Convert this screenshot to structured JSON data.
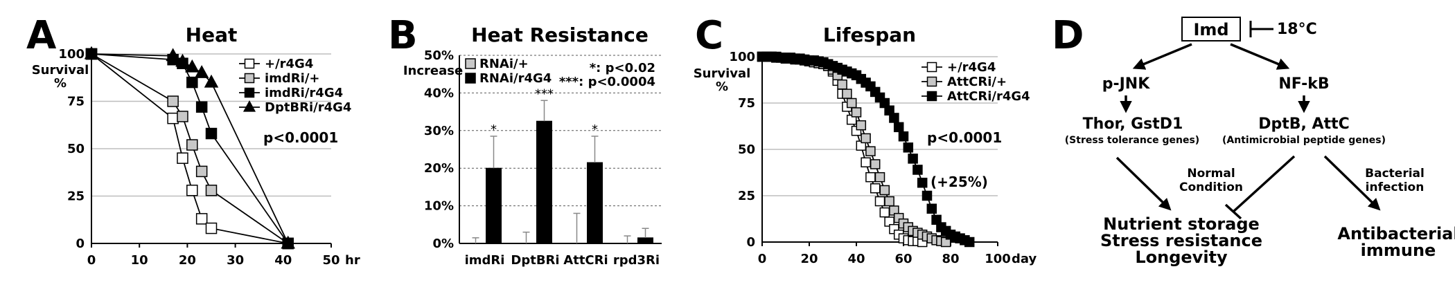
{
  "panels": {
    "A": {
      "letter": "A",
      "title": "Heat"
    },
    "B": {
      "letter": "B",
      "title": "Heat Resistance"
    },
    "C": {
      "letter": "C",
      "title": "Lifespan"
    },
    "D": {
      "letter": "D"
    }
  },
  "chart_data": [
    {
      "id": "A",
      "type": "line",
      "title": "Heat",
      "ylabel": "Survival %",
      "xlabel": "hr",
      "xlim": [
        0,
        50
      ],
      "ylim": [
        0,
        100
      ],
      "xticks": [
        0,
        10,
        20,
        30,
        40,
        50
      ],
      "yticks": [
        0,
        25,
        50,
        75,
        100
      ],
      "grid": "horizontal",
      "legend_position": "top-right",
      "annotation": "p<0.0001",
      "series": [
        {
          "name": "+/r4G4",
          "marker": "square",
          "fill": "#ffffff",
          "points": [
            [
              0,
              100
            ],
            [
              17,
              66
            ],
            [
              19,
              45
            ],
            [
              21,
              28
            ],
            [
              23,
              13
            ],
            [
              25,
              8
            ],
            [
              41,
              0
            ]
          ]
        },
        {
          "name": "imdRi/+",
          "marker": "square",
          "fill": "#c8c8c8",
          "points": [
            [
              0,
              100
            ],
            [
              17,
              75
            ],
            [
              19,
              67
            ],
            [
              21,
              52
            ],
            [
              23,
              38
            ],
            [
              25,
              28
            ],
            [
              41,
              0
            ]
          ]
        },
        {
          "name": "imdRi/r4G4",
          "marker": "square",
          "fill": "#000000",
          "points": [
            [
              0,
              100
            ],
            [
              17,
              97
            ],
            [
              19,
              95
            ],
            [
              21,
              85
            ],
            [
              23,
              72
            ],
            [
              25,
              58
            ],
            [
              41,
              0
            ]
          ]
        },
        {
          "name": "DptBRi/r4G4",
          "marker": "triangle",
          "fill": "#000000",
          "points": [
            [
              0,
              100
            ],
            [
              17,
              99
            ],
            [
              19,
              96
            ],
            [
              21,
              93
            ],
            [
              23,
              90
            ],
            [
              25,
              85
            ],
            [
              41,
              0
            ]
          ]
        }
      ]
    },
    {
      "id": "B",
      "type": "bar",
      "title": "Heat Resistance",
      "ylabel": "Increase",
      "categories": [
        "imdRi",
        "DptBRi",
        "AttCRi",
        "rpd3Ri"
      ],
      "ylim": [
        0,
        50
      ],
      "yticks": [
        "0%",
        "10%",
        "20%",
        "30%",
        "40%",
        "50%"
      ],
      "ytick_values": [
        0,
        10,
        20,
        30,
        40,
        50
      ],
      "grid": "horizontal dotted",
      "legend_position": "top-left",
      "sig_legend": [
        "*: p<0.02",
        "***: p<0.0004"
      ],
      "series": [
        {
          "name": "RNAi/+",
          "fill": "#c8c8c8",
          "values": [
            0,
            0,
            0,
            0
          ],
          "errors": [
            1.5,
            3,
            8,
            2
          ]
        },
        {
          "name": "RNAi/r4G4",
          "fill": "#000000",
          "values": [
            20,
            32.5,
            21.5,
            1.5
          ],
          "errors": [
            8.5,
            5.5,
            7,
            2.5
          ]
        }
      ],
      "significance": [
        "*",
        "***",
        "*",
        ""
      ]
    },
    {
      "id": "C",
      "type": "line",
      "title": "Lifespan",
      "ylabel": "Survival %",
      "xlabel": "day",
      "xlim": [
        0,
        100
      ],
      "ylim": [
        0,
        100
      ],
      "xticks": [
        0,
        20,
        40,
        60,
        80,
        100
      ],
      "yticks": [
        0,
        25,
        50,
        75,
        100
      ],
      "grid": "horizontal",
      "legend_position": "top-right",
      "annotations": [
        "p<0.0001",
        "(+25%)"
      ],
      "series": [
        {
          "name": "+/r4G4",
          "marker": "square",
          "fill": "#ffffff",
          "points": [
            [
              0,
              100
            ],
            [
              2,
              100
            ],
            [
              4,
              100
            ],
            [
              6,
              99.5
            ],
            [
              8,
              99.5
            ],
            [
              10,
              99
            ],
            [
              12,
              99
            ],
            [
              14,
              99
            ],
            [
              16,
              98.5
            ],
            [
              18,
              98
            ],
            [
              20,
              97.5
            ],
            [
              22,
              97
            ],
            [
              24,
              96.5
            ],
            [
              26,
              96
            ],
            [
              28,
              95
            ],
            [
              30,
              92
            ],
            [
              32,
              87
            ],
            [
              34,
              80
            ],
            [
              36,
              73
            ],
            [
              38,
              66
            ],
            [
              40,
              60
            ],
            [
              42,
              52
            ],
            [
              44,
              43
            ],
            [
              46,
              35
            ],
            [
              48,
              29
            ],
            [
              50,
              22
            ],
            [
              52,
              16
            ],
            [
              54,
              11
            ],
            [
              56,
              7
            ],
            [
              58,
              4
            ],
            [
              60,
              2
            ],
            [
              62,
              1
            ],
            [
              64,
              0.5
            ],
            [
              66,
              0.5
            ],
            [
              68,
              0
            ]
          ]
        },
        {
          "name": "AttCRi/+",
          "marker": "square",
          "fill": "#c8c8c8",
          "points": [
            [
              0,
              100
            ],
            [
              2,
              100
            ],
            [
              4,
              100
            ],
            [
              6,
              99.5
            ],
            [
              8,
              99.5
            ],
            [
              10,
              99
            ],
            [
              12,
              99
            ],
            [
              14,
              98.5
            ],
            [
              16,
              98.5
            ],
            [
              18,
              98
            ],
            [
              20,
              97.5
            ],
            [
              22,
              97
            ],
            [
              24,
              96.5
            ],
            [
              26,
              96
            ],
            [
              28,
              95
            ],
            [
              30,
              93
            ],
            [
              32,
              90
            ],
            [
              34,
              85
            ],
            [
              36,
              80
            ],
            [
              38,
              75
            ],
            [
              40,
              70
            ],
            [
              42,
              63
            ],
            [
              44,
              56
            ],
            [
              46,
              49
            ],
            [
              48,
              42
            ],
            [
              50,
              35
            ],
            [
              52,
              28
            ],
            [
              54,
              22
            ],
            [
              56,
              17
            ],
            [
              58,
              13
            ],
            [
              60,
              10
            ],
            [
              62,
              8
            ],
            [
              64,
              6
            ],
            [
              66,
              5
            ],
            [
              68,
              4
            ],
            [
              70,
              3
            ],
            [
              72,
              2
            ],
            [
              74,
              1
            ],
            [
              76,
              0.5
            ],
            [
              78,
              0
            ]
          ]
        },
        {
          "name": "AttCRi/r4G4",
          "marker": "square",
          "fill": "#000000",
          "points": [
            [
              0,
              100
            ],
            [
              2,
              100
            ],
            [
              4,
              100
            ],
            [
              6,
              100
            ],
            [
              8,
              99.5
            ],
            [
              10,
              99.5
            ],
            [
              12,
              99.5
            ],
            [
              14,
              99
            ],
            [
              16,
              99
            ],
            [
              18,
              98.5
            ],
            [
              20,
              98
            ],
            [
              22,
              98
            ],
            [
              24,
              97.5
            ],
            [
              26,
              97
            ],
            [
              28,
              96
            ],
            [
              30,
              95
            ],
            [
              32,
              94
            ],
            [
              34,
              93
            ],
            [
              36,
              92
            ],
            [
              38,
              91
            ],
            [
              40,
              90
            ],
            [
              42,
              88
            ],
            [
              44,
              86
            ],
            [
              46,
              84
            ],
            [
              48,
              81
            ],
            [
              50,
              78
            ],
            [
              52,
              75
            ],
            [
              54,
              71
            ],
            [
              56,
              67
            ],
            [
              58,
              62
            ],
            [
              60,
              57
            ],
            [
              62,
              51
            ],
            [
              64,
              45
            ],
            [
              66,
              39
            ],
            [
              68,
              32
            ],
            [
              70,
              25
            ],
            [
              72,
              18
            ],
            [
              74,
              12
            ],
            [
              76,
              8
            ],
            [
              78,
              6
            ],
            [
              80,
              4
            ],
            [
              82,
              3
            ],
            [
              84,
              2
            ],
            [
              86,
              1
            ],
            [
              88,
              0
            ]
          ]
        }
      ]
    }
  ],
  "diagram": {
    "imd": "Imd",
    "temp": "18°C",
    "pjnk": "p-JNK",
    "nfkb": "NF-kB",
    "thor": "Thor, GstD1",
    "thor_sub": "(Stress tolerance genes)",
    "dptb": "DptB, AttC",
    "dptb_sub": "(Antimicrobial peptide genes)",
    "normal1": "Normal",
    "normal2": "Condition",
    "bact1": "Bacterial",
    "bact2": "infection",
    "out1": "Nutrient storage",
    "out2": "Stress resistance",
    "out3": "Longevity",
    "out4": "Antibacterial",
    "out5": "immune"
  }
}
